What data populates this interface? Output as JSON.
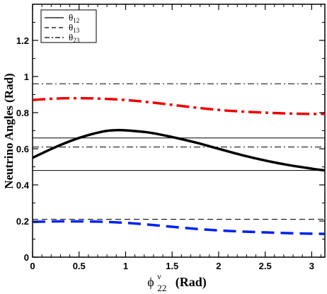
{
  "chart_data": {
    "type": "line",
    "xlabel": {
      "main": "ϕ",
      "sup": "ν",
      "sub": "22",
      "units": "(Rad)"
    },
    "ylabel": "Neutrino Angles (Rad)",
    "xlim": [
      0,
      3.14159
    ],
    "ylim": [
      0,
      1.4
    ],
    "xticks": [
      0,
      0.5,
      1,
      1.5,
      2,
      2.5,
      3
    ],
    "xtick_labels": [
      "0",
      "0.5",
      "1",
      "1.5",
      "2",
      "2.5",
      "3"
    ],
    "yticks": [
      0,
      0.2,
      0.4,
      0.6,
      0.8,
      1.0,
      1.2
    ],
    "ytick_labels": [
      "0",
      "0.2",
      "0.4",
      "0.6",
      "0.8",
      "1",
      "1.2"
    ],
    "grid": false,
    "legend_position": "top-left",
    "legend": [
      {
        "symbol": "θ",
        "sub": "12",
        "style": "solid"
      },
      {
        "symbol": "θ",
        "sub": "13",
        "style": "dashed"
      },
      {
        "symbol": "θ",
        "sub": "23",
        "style": "dashdot"
      }
    ],
    "series": [
      {
        "legend_ref": "θ12",
        "color": "#000000",
        "style": "solid",
        "x": [
          0,
          0.25,
          0.5,
          0.75,
          0.9,
          1.0,
          1.25,
          1.5,
          1.75,
          2.0,
          2.25,
          2.5,
          2.75,
          3.0,
          3.14
        ],
        "y": [
          0.55,
          0.61,
          0.66,
          0.695,
          0.703,
          0.702,
          0.69,
          0.665,
          0.635,
          0.6,
          0.565,
          0.535,
          0.51,
          0.49,
          0.48
        ]
      },
      {
        "legend_ref": "θ13",
        "color": "#0022ee",
        "style": "dashed",
        "x": [
          0,
          0.25,
          0.5,
          0.75,
          1.0,
          1.25,
          1.5,
          1.75,
          2.0,
          2.25,
          2.5,
          2.75,
          3.0,
          3.14
        ],
        "y": [
          0.195,
          0.198,
          0.198,
          0.196,
          0.19,
          0.18,
          0.168,
          0.157,
          0.148,
          0.142,
          0.137,
          0.133,
          0.13,
          0.129
        ]
      },
      {
        "legend_ref": "θ23",
        "color": "#ee0000",
        "style": "dashdot",
        "x": [
          0,
          0.25,
          0.5,
          0.75,
          1.0,
          1.25,
          1.5,
          1.75,
          2.0,
          2.25,
          2.5,
          2.75,
          3.0,
          3.14
        ],
        "y": [
          0.87,
          0.878,
          0.88,
          0.877,
          0.87,
          0.858,
          0.843,
          0.828,
          0.815,
          0.806,
          0.8,
          0.795,
          0.793,
          0.793
        ]
      }
    ],
    "reference_lines": [
      {
        "y": 0.96,
        "style": "dashdot"
      },
      {
        "y": 0.66,
        "style": "solid"
      },
      {
        "y": 0.61,
        "style": "dashdot"
      },
      {
        "y": 0.48,
        "style": "solid"
      },
      {
        "y": 0.21,
        "style": "dashed"
      }
    ]
  }
}
